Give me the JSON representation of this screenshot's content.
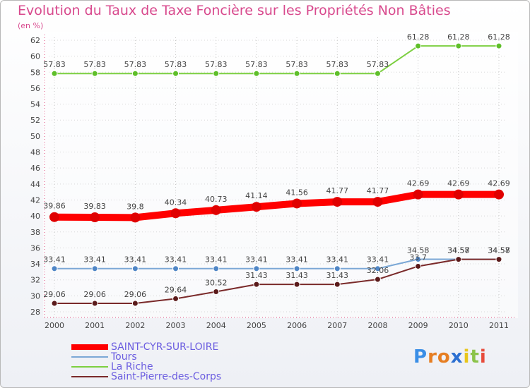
{
  "chart_data": {
    "type": "line",
    "title": "Evolution du Taux de Taxe Foncière sur les Propriétés Non Bâties",
    "ylabel": "(en %)",
    "xlabel": "",
    "ylim": [
      28,
      62
    ],
    "yticks": [
      "28",
      "30",
      "32",
      "34",
      "36",
      "38",
      "40",
      "42",
      "44",
      "46",
      "48",
      "50",
      "52",
      "54",
      "56",
      "58",
      "60",
      "62"
    ],
    "categories": [
      "2000",
      "2001",
      "2002",
      "2003",
      "2004",
      "2005",
      "2006",
      "2007",
      "2008",
      "2009",
      "2010",
      "2011"
    ],
    "series": [
      {
        "name": "SAINT-CYR-SUR-LOIRE",
        "color": "#ff0000",
        "values": [
          39.86,
          39.83,
          39.8,
          40.34,
          40.73,
          41.14,
          41.56,
          41.77,
          41.77,
          42.69,
          42.69,
          42.69
        ],
        "labels": [
          "39.86",
          "39.83",
          "39.8",
          "40.34",
          "40.73",
          "41.14",
          "41.56",
          "41.77",
          "41.77",
          "42.69",
          "42.69",
          "42.69"
        ]
      },
      {
        "name": "Tours",
        "color": "#7ba8d6",
        "values": [
          33.41,
          33.41,
          33.41,
          33.41,
          33.41,
          33.41,
          33.41,
          33.41,
          33.41,
          34.58,
          34.58,
          34.58
        ],
        "labels": [
          "33.41",
          "33.41",
          "33.41",
          "33.41",
          "33.41",
          "33.41",
          "33.41",
          "33.41",
          "33.41",
          "34.58",
          "34.58",
          "34.58"
        ]
      },
      {
        "name": "La Riche",
        "color": "#7ccf40",
        "values": [
          57.83,
          57.83,
          57.83,
          57.83,
          57.83,
          57.83,
          57.83,
          57.83,
          57.83,
          61.28,
          61.28,
          61.28
        ],
        "labels": [
          "57.83",
          "57.83",
          "57.83",
          "57.83",
          "57.83",
          "57.83",
          "57.83",
          "57.83",
          "57.83",
          "61.28",
          "61.28",
          "61.28"
        ]
      },
      {
        "name": "Saint-Pierre-des-Corps",
        "color": "#7a2a2a",
        "values": [
          29.06,
          29.06,
          29.06,
          29.64,
          30.52,
          31.43,
          31.43,
          31.43,
          32.06,
          33.7,
          34.57,
          34.57
        ],
        "labels": [
          "29.06",
          "29.06",
          "29.06",
          "29.64",
          "30.52",
          "31.43",
          "31.43",
          "31.43",
          "32.06",
          "33.7",
          "34.57",
          "34.57"
        ]
      }
    ],
    "legend_position": "bottom-left"
  },
  "logo": {
    "letters": [
      "P",
      "r",
      "o",
      "x",
      "i",
      "t",
      "i"
    ],
    "colors": [
      "#3a8ee6",
      "#e67e22",
      "#e67e22",
      "#2c6fd1",
      "#e8c61a",
      "#8bc34a",
      "#e74c3c"
    ]
  }
}
